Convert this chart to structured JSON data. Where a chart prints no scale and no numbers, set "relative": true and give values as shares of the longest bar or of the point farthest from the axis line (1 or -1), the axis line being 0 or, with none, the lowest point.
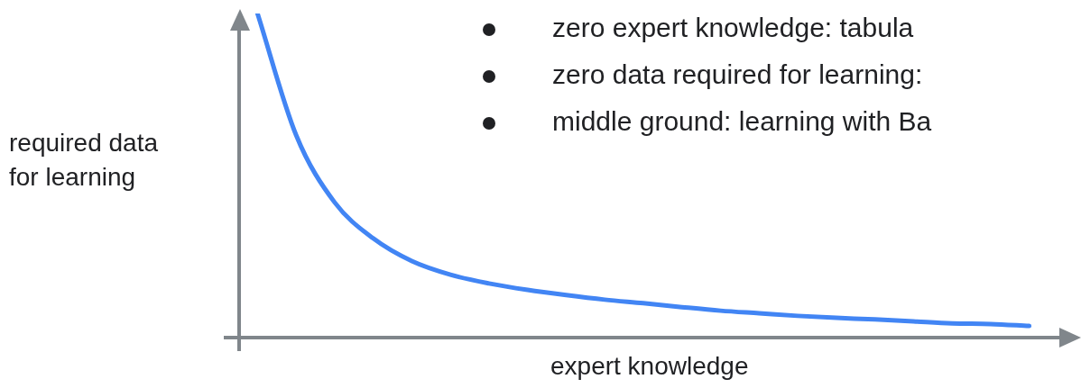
{
  "chart_data": {
    "type": "line",
    "relative": true,
    "xlabel": "expert knowledge",
    "ylabel": "required data for learning",
    "annotations": [
      "zero expert knowledge: tabula",
      "zero data required for learning:",
      "middle ground: learning with Ba"
    ],
    "categories": [
      null,
      null,
      null,
      null,
      null,
      null,
      null,
      null,
      null,
      null,
      null,
      null,
      null,
      null,
      null,
      null,
      null,
      null,
      null,
      null,
      null
    ],
    "series": [
      {
        "color": "#4285f4",
        "values": [
          1.0,
          0.625,
          0.417,
          0.306,
          0.236,
          0.194,
          0.167,
          0.147,
          0.131,
          0.117,
          0.106,
          0.094,
          0.083,
          0.075,
          0.067,
          0.061,
          0.056,
          0.05,
          0.044,
          0.042,
          0.036
        ]
      }
    ],
    "marker": "none",
    "line_style": "solid"
  }
}
